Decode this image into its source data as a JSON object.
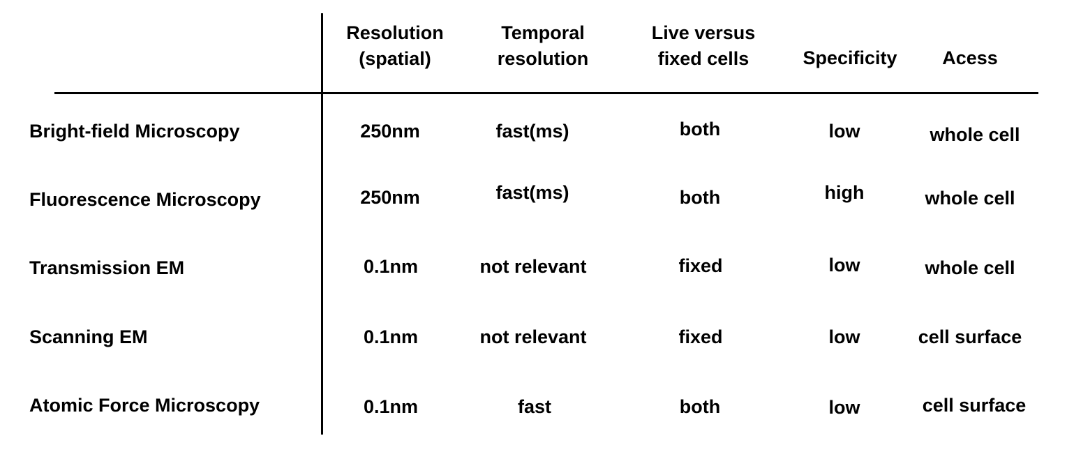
{
  "table": {
    "headers": {
      "resolution": "Resolution\n(spatial)",
      "temporal": "Temporal\nresolution",
      "live": "Live versus\nfixed cells",
      "specificity": "Specificity",
      "access": "Acess"
    },
    "rows": [
      {
        "method": "Bright-field Microscopy",
        "resolution": "250nm",
        "temporal": "fast(ms)",
        "live": "both",
        "specificity": "low",
        "access": "whole cell"
      },
      {
        "method": "Fluorescence Microscopy",
        "resolution": "250nm",
        "temporal": "fast(ms)",
        "live": "both",
        "specificity": "high",
        "access": "whole cell"
      },
      {
        "method": "Transmission EM",
        "resolution": "0.1nm",
        "temporal": "not relevant",
        "live": "fixed",
        "specificity": "low",
        "access": "whole cell"
      },
      {
        "method": "Scanning EM",
        "resolution": "0.1nm",
        "temporal": "not relevant",
        "live": "fixed",
        "specificity": "low",
        "access": "cell surface"
      },
      {
        "method": "Atomic Force Microscopy",
        "resolution": "0.1nm",
        "temporal": "fast",
        "live": "both",
        "specificity": "low",
        "access": "cell surface"
      }
    ]
  }
}
